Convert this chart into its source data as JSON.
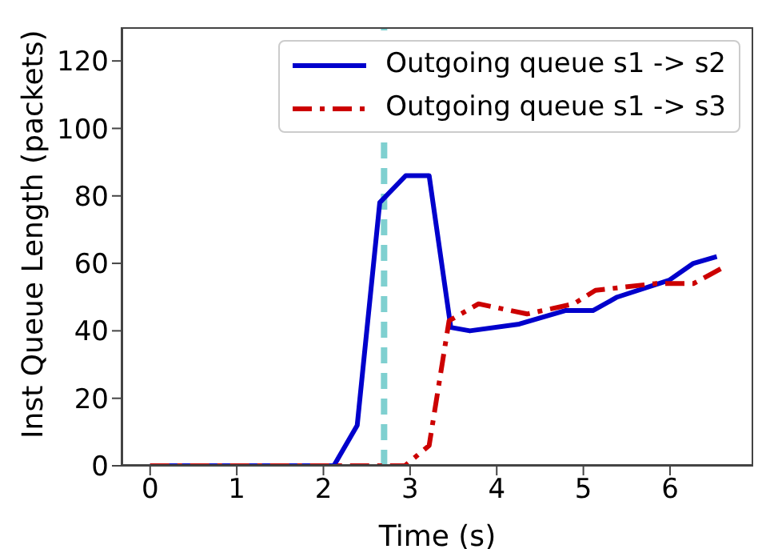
{
  "chart_data": {
    "type": "line",
    "xlabel": "Time (s)",
    "ylabel": "Inst Queue Length (packets)",
    "xlim": [
      -0.33,
      6.96
    ],
    "xticks": [
      0,
      1,
      2,
      3,
      4,
      5,
      6
    ],
    "ylim": [
      0,
      130
    ],
    "yticks": [
      0,
      20,
      40,
      60,
      80,
      100,
      120
    ],
    "grid": false,
    "legend": "top right",
    "series": [
      {
        "name": "Outgoing queue s1 -> s2",
        "color": "#0000cc",
        "line_style": "solid",
        "x": [
          0,
          2.12,
          2.39,
          2.65,
          2.95,
          3.22,
          3.47,
          3.69,
          4.26,
          4.79,
          5.11,
          5.39,
          5.99,
          6.27,
          6.54
        ],
        "values": [
          0,
          0,
          12,
          78,
          86,
          86,
          41,
          40,
          42,
          46,
          46,
          50,
          55,
          60,
          62
        ]
      },
      {
        "name": "Outgoing queue s1 -> s3",
        "color": "#cc0000",
        "line_style": "dashdot",
        "x": [
          0,
          2.94,
          3.22,
          3.45,
          3.79,
          4.35,
          4.89,
          5.14,
          5.83,
          6.27,
          6.63
        ],
        "values": [
          0,
          0,
          6,
          43,
          48,
          45,
          48,
          52,
          54,
          54,
          59
        ]
      }
    ],
    "ref_lines": [
      {
        "axis": "x",
        "value": 2.7,
        "color": "#7fd0d0",
        "line_style": "dashed"
      }
    ]
  }
}
